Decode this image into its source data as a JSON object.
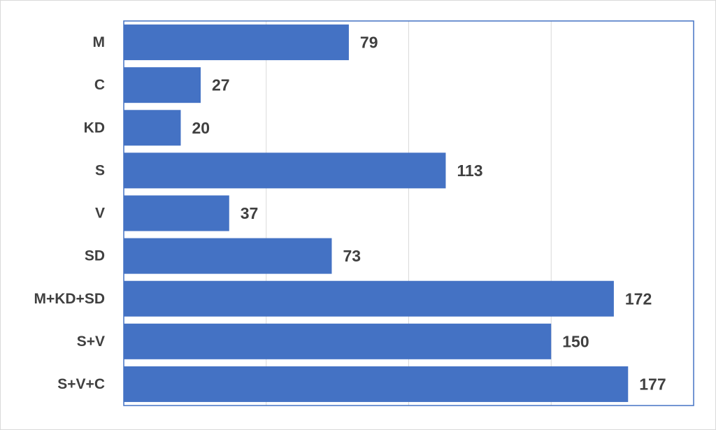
{
  "chart_data": {
    "type": "hbar",
    "categories": [
      "M",
      "C",
      "KD",
      "S",
      "V",
      "SD",
      "M+KD+SD",
      "S+V",
      "S+V+C"
    ],
    "values": [
      79,
      27,
      20,
      113,
      37,
      73,
      172,
      150,
      177
    ],
    "color": "#4472c4",
    "xlim": [
      0,
      200
    ],
    "xticks": [
      0,
      50,
      100,
      150,
      200
    ],
    "grid": true
  }
}
